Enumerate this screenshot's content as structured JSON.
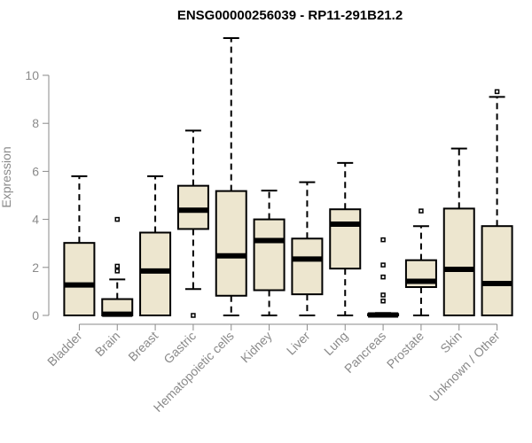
{
  "chart_data": {
    "type": "boxplot",
    "title": "ENSG00000256039 - RP11-291B21.2",
    "ylabel": "Expression",
    "xlabel": "",
    "ylim": [
      0,
      11.5
    ],
    "yticks": [
      0,
      2,
      4,
      6,
      8,
      10
    ],
    "box_fill": "#ede6cf",
    "categories": [
      "Bladder",
      "Brain",
      "Breast",
      "Gastric",
      "Hematopoietic cells",
      "Kidney",
      "Liver",
      "Lung",
      "Pancreas",
      "Prostate",
      "Skin",
      "Unknown / Other"
    ],
    "boxes": [
      {
        "category": "Bladder",
        "whisker_low": 0,
        "q1": 0,
        "median": 1.27,
        "q3": 3.02,
        "whisker_high": 5.8,
        "outliers": []
      },
      {
        "category": "Brain",
        "whisker_low": 0,
        "q1": 0,
        "median": 0.05,
        "q3": 0.68,
        "whisker_high": 1.5,
        "outliers": [
          1.85,
          2.05,
          4.0
        ]
      },
      {
        "category": "Breast",
        "whisker_low": 0,
        "q1": 0,
        "median": 1.85,
        "q3": 3.45,
        "whisker_high": 5.8,
        "outliers": []
      },
      {
        "category": "Gastric",
        "whisker_low": 1.1,
        "q1": 3.6,
        "median": 4.38,
        "q3": 5.4,
        "whisker_high": 7.7,
        "outliers": [
          0
        ]
      },
      {
        "category": "Hematopoietic cells",
        "whisker_low": 0,
        "q1": 0.82,
        "median": 2.48,
        "q3": 5.18,
        "whisker_high": 11.55,
        "outliers": []
      },
      {
        "category": "Kidney",
        "whisker_low": 0,
        "q1": 1.05,
        "median": 3.12,
        "q3": 4.0,
        "whisker_high": 5.2,
        "outliers": []
      },
      {
        "category": "Liver",
        "whisker_low": 0,
        "q1": 0.88,
        "median": 2.35,
        "q3": 3.2,
        "whisker_high": 5.55,
        "outliers": []
      },
      {
        "category": "Lung",
        "whisker_low": 0,
        "q1": 1.95,
        "median": 3.8,
        "q3": 4.42,
        "whisker_high": 6.35,
        "outliers": []
      },
      {
        "category": "Pancreas",
        "whisker_low": 0,
        "q1": 0,
        "median": 0.02,
        "q3": 0.06,
        "whisker_high": 0.1,
        "outliers": [
          0.6,
          0.85,
          1.6,
          2.1,
          3.15
        ]
      },
      {
        "category": "Prostate",
        "whisker_low": 0,
        "q1": 1.18,
        "median": 1.42,
        "q3": 2.3,
        "whisker_high": 3.72,
        "outliers": [
          4.35
        ]
      },
      {
        "category": "Skin",
        "whisker_low": 0,
        "q1": 0,
        "median": 1.92,
        "q3": 4.45,
        "whisker_high": 6.95,
        "outliers": []
      },
      {
        "category": "Unknown / Other",
        "whisker_low": 0,
        "q1": 0,
        "median": 1.33,
        "q3": 3.72,
        "whisker_high": 9.1,
        "outliers": [
          9.32
        ]
      }
    ]
  }
}
